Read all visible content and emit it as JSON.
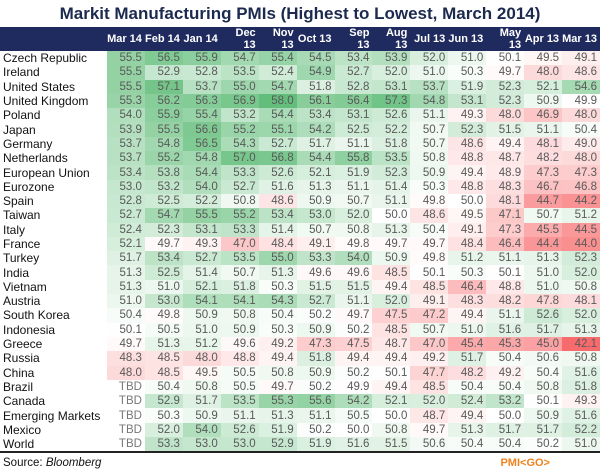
{
  "chart_data": {
    "type": "heatmap",
    "title": "Markit Manufacturing PMIs (Highest to Lowest, March 2014)",
    "columns": [
      "Mar 14",
      "Feb 14",
      "Jan 14",
      "Dec 13",
      "Nov 13",
      "Oct 13",
      "Sep 13",
      "Aug 13",
      "Jul 13",
      "Jun 13",
      "May 13",
      "Apr 13",
      "Mar 13"
    ],
    "rows": [
      {
        "name": "Czech Republic",
        "values": [
          "55.5",
          "56.5",
          "55.9",
          "54.7",
          "55.4",
          "54.5",
          "53.4",
          "53.9",
          "52.0",
          "51.0",
          "50.1",
          "49.5",
          "49.1"
        ]
      },
      {
        "name": "Ireland",
        "values": [
          "55.5",
          "52.9",
          "52.8",
          "53.5",
          "52.4",
          "54.9",
          "52.7",
          "52.0",
          "51.0",
          "50.3",
          "49.7",
          "48.0",
          "48.6"
        ]
      },
      {
        "name": "United States",
        "values": [
          "55.5",
          "57.1",
          "53.7",
          "55.0",
          "54.7",
          "51.8",
          "52.8",
          "53.1",
          "53.7",
          "51.9",
          "52.3",
          "52.1",
          "54.6"
        ]
      },
      {
        "name": "United Kingdom",
        "values": [
          "55.3",
          "56.2",
          "56.3",
          "56.9",
          "58.0",
          "56.1",
          "56.4",
          "57.3",
          "54.8",
          "53.1",
          "52.3",
          "50.9",
          "49.9"
        ]
      },
      {
        "name": "Poland",
        "values": [
          "54.0",
          "55.9",
          "55.4",
          "53.2",
          "54.4",
          "53.4",
          "53.1",
          "52.6",
          "51.1",
          "49.3",
          "48.0",
          "46.9",
          "48.0"
        ]
      },
      {
        "name": "Japan",
        "values": [
          "53.9",
          "55.5",
          "56.6",
          "55.2",
          "55.1",
          "54.2",
          "52.5",
          "52.2",
          "50.7",
          "52.3",
          "51.5",
          "51.1",
          "50.4"
        ]
      },
      {
        "name": "Germany",
        "values": [
          "53.7",
          "54.8",
          "56.5",
          "54.3",
          "52.7",
          "51.7",
          "51.1",
          "51.8",
          "50.7",
          "48.6",
          "49.4",
          "48.1",
          "49.0"
        ]
      },
      {
        "name": "Netherlands",
        "values": [
          "53.7",
          "55.2",
          "54.8",
          "57.0",
          "56.8",
          "54.4",
          "55.8",
          "53.5",
          "50.8",
          "48.8",
          "48.7",
          "48.2",
          "48.0"
        ]
      },
      {
        "name": "European Union",
        "values": [
          "53.4",
          "53.8",
          "54.4",
          "53.3",
          "52.6",
          "52.1",
          "51.9",
          "52.3",
          "50.9",
          "49.4",
          "48.9",
          "47.3",
          "47.3"
        ]
      },
      {
        "name": "Eurozone",
        "values": [
          "53.0",
          "53.2",
          "54.0",
          "52.7",
          "51.6",
          "51.3",
          "51.1",
          "51.4",
          "50.3",
          "48.8",
          "48.3",
          "46.7",
          "46.8"
        ]
      },
      {
        "name": "Spain",
        "values": [
          "52.8",
          "52.5",
          "52.2",
          "50.8",
          "48.6",
          "50.9",
          "50.7",
          "51.1",
          "49.8",
          "50.0",
          "48.1",
          "44.7",
          "44.2"
        ]
      },
      {
        "name": "Taiwan",
        "values": [
          "52.7",
          "54.7",
          "55.5",
          "55.2",
          "53.4",
          "53.0",
          "52.0",
          "50.0",
          "48.6",
          "49.5",
          "47.1",
          "50.7",
          "51.2"
        ]
      },
      {
        "name": "Italy",
        "values": [
          "52.4",
          "52.3",
          "53.1",
          "53.3",
          "51.4",
          "50.7",
          "50.8",
          "51.3",
          "50.4",
          "49.1",
          "47.3",
          "45.5",
          "44.5"
        ]
      },
      {
        "name": "France",
        "values": [
          "52.1",
          "49.7",
          "49.3",
          "47.0",
          "48.4",
          "49.1",
          "49.8",
          "49.7",
          "49.7",
          "48.4",
          "46.4",
          "44.4",
          "44.0"
        ]
      },
      {
        "name": "Turkey",
        "values": [
          "51.7",
          "53.4",
          "52.7",
          "53.5",
          "55.0",
          "53.3",
          "54.0",
          "50.9",
          "49.8",
          "51.2",
          "51.1",
          "51.3",
          "52.3"
        ]
      },
      {
        "name": "India",
        "values": [
          "51.3",
          "52.5",
          "51.4",
          "50.7",
          "51.3",
          "49.6",
          "49.6",
          "48.5",
          "50.1",
          "50.3",
          "50.1",
          "51.0",
          "52.0"
        ]
      },
      {
        "name": "Vietnam",
        "values": [
          "51.3",
          "51.0",
          "52.1",
          "51.8",
          "50.3",
          "51.5",
          "51.5",
          "49.4",
          "48.5",
          "46.4",
          "48.8",
          "51.0",
          "50.8"
        ]
      },
      {
        "name": "Austria",
        "values": [
          "51.0",
          "53.0",
          "54.1",
          "54.1",
          "54.3",
          "52.7",
          "51.1",
          "52.0",
          "49.1",
          "48.3",
          "48.2",
          "47.8",
          "48.1"
        ]
      },
      {
        "name": "South Korea",
        "values": [
          "50.4",
          "49.8",
          "50.9",
          "50.8",
          "50.4",
          "50.2",
          "49.7",
          "47.5",
          "47.2",
          "49.4",
          "51.1",
          "52.6",
          "52.0"
        ]
      },
      {
        "name": "Indonesia",
        "values": [
          "50.1",
          "50.5",
          "51.0",
          "50.9",
          "50.3",
          "50.9",
          "50.2",
          "48.5",
          "50.7",
          "51.0",
          "51.6",
          "51.7",
          "51.3"
        ]
      },
      {
        "name": "Greece",
        "values": [
          "49.7",
          "51.3",
          "51.2",
          "49.6",
          "49.2",
          "47.3",
          "47.5",
          "48.7",
          "47.0",
          "45.4",
          "45.3",
          "45.0",
          "42.1"
        ]
      },
      {
        "name": "Russia",
        "values": [
          "48.3",
          "48.5",
          "48.0",
          "48.8",
          "49.4",
          "51.8",
          "49.4",
          "49.4",
          "49.2",
          "51.7",
          "50.4",
          "50.6",
          "50.8"
        ]
      },
      {
        "name": "China",
        "values": [
          "48.0",
          "48.5",
          "49.5",
          "50.5",
          "50.8",
          "50.9",
          "50.2",
          "50.1",
          "47.7",
          "48.2",
          "49.2",
          "50.4",
          "51.6"
        ]
      },
      {
        "name": "Brazil",
        "values": [
          "TBD",
          "50.4",
          "50.8",
          "50.5",
          "49.7",
          "50.2",
          "49.9",
          "49.4",
          "48.5",
          "50.4",
          "50.4",
          "50.8",
          "51.8"
        ]
      },
      {
        "name": "Canada",
        "values": [
          "TBD",
          "52.9",
          "51.7",
          "53.5",
          "55.3",
          "55.6",
          "54.2",
          "52.1",
          "52.0",
          "52.4",
          "53.2",
          "50.1",
          "49.3"
        ]
      },
      {
        "name": "Emerging Markets",
        "values": [
          "TBD",
          "50.3",
          "50.9",
          "51.1",
          "51.3",
          "51.1",
          "50.5",
          "50.0",
          "48.7",
          "49.4",
          "50.0",
          "50.9",
          "51.6"
        ]
      },
      {
        "name": "Mexico",
        "values": [
          "TBD",
          "52.0",
          "54.0",
          "52.6",
          "51.9",
          "50.2",
          "50.0",
          "50.8",
          "49.7",
          "51.3",
          "51.7",
          "51.7",
          "52.2"
        ]
      },
      {
        "name": "World",
        "values": [
          "TBD",
          "53.3",
          "53.0",
          "53.0",
          "52.9",
          "51.9",
          "51.6",
          "51.5",
          "50.6",
          "50.4",
          "50.4",
          "50.2",
          "51.0"
        ]
      }
    ],
    "color_scale": {
      "low": 42,
      "mid": 50,
      "high": 58,
      "low_color": "#f8696b",
      "mid_color": "#ffffff",
      "high_color": "#63be7b"
    }
  },
  "footer": {
    "source_label": "Source: ",
    "source_name": "Bloomberg",
    "brand": "PMI<GO>"
  },
  "colors": {
    "header_bg": "#1f2b5e",
    "brand": "#f0821e"
  }
}
